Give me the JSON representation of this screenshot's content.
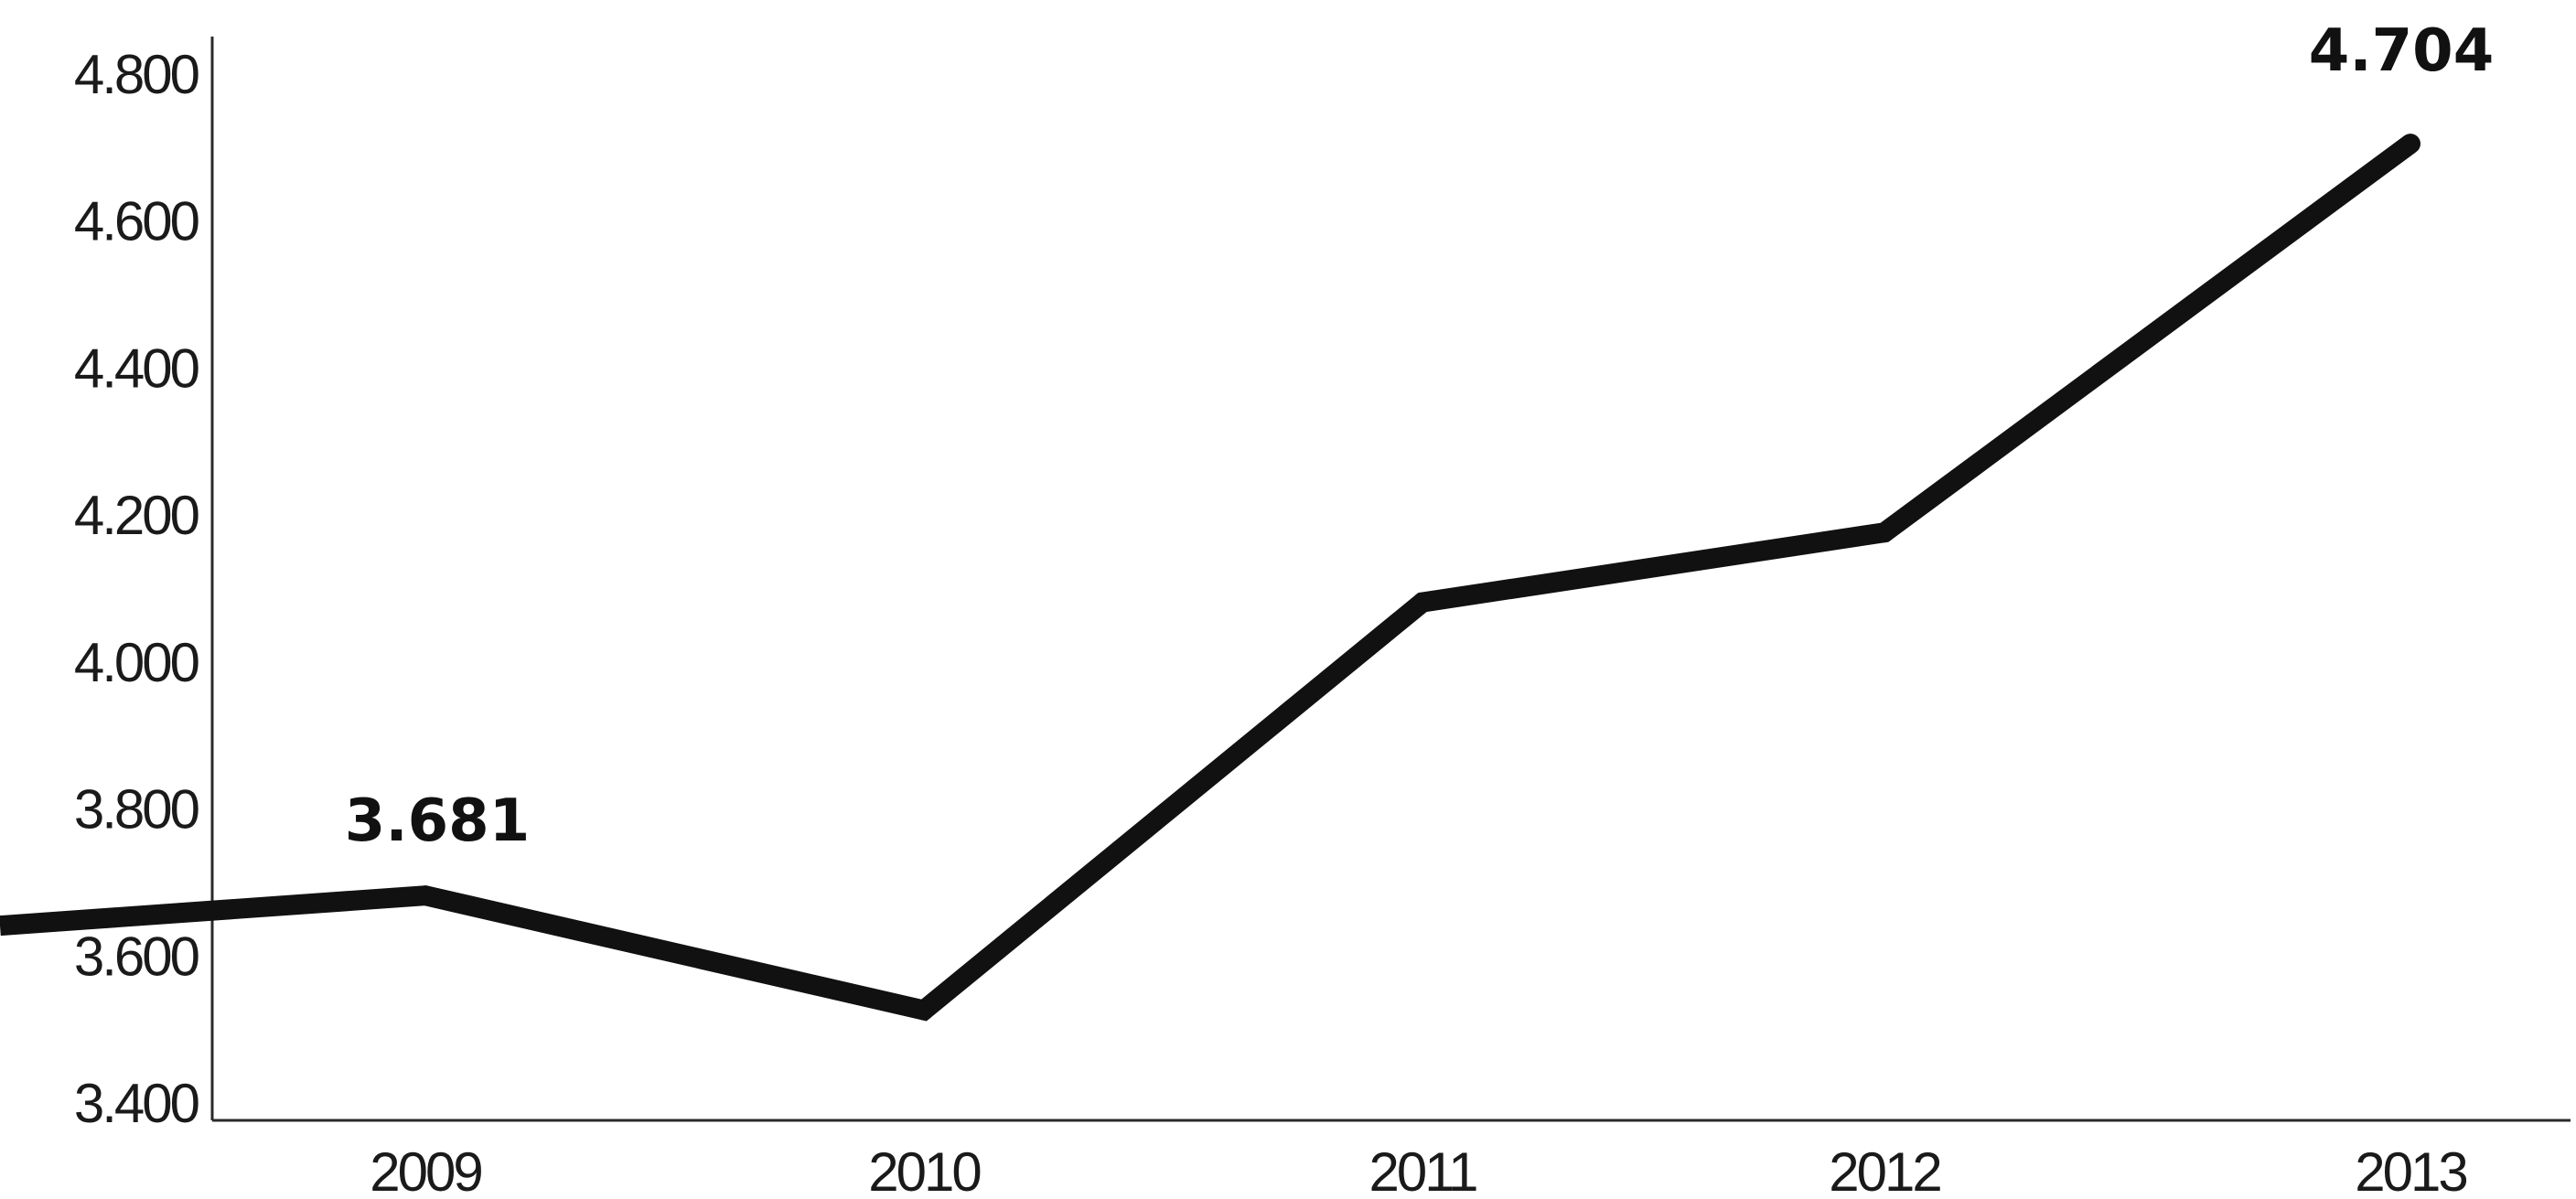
{
  "chart_data": {
    "type": "line",
    "title": "",
    "xlabel": "",
    "ylabel": "",
    "x": [
      "2009",
      "2010",
      "2011",
      "2012",
      "2013"
    ],
    "series": [
      {
        "values": [
          3681,
          3525,
          4080,
          4175,
          4704
        ]
      }
    ],
    "series_color": "#111111",
    "line_start_value": 3640,
    "line_extends_left_of_first_category": true,
    "ylim": [
      3400,
      4800
    ],
    "yticks": [
      3400,
      3600,
      3800,
      4000,
      4200,
      4400,
      4600,
      4800
    ],
    "ytick_labels": [
      "3.400",
      "3.600",
      "3.800",
      "4.000",
      "4.200",
      "4.400",
      "4.600",
      "4.800"
    ],
    "data_labels": [
      {
        "category": "2009",
        "text": "3.681"
      },
      {
        "category": "2013",
        "text": "4.704"
      }
    ],
    "grid": false,
    "legend": "none"
  }
}
